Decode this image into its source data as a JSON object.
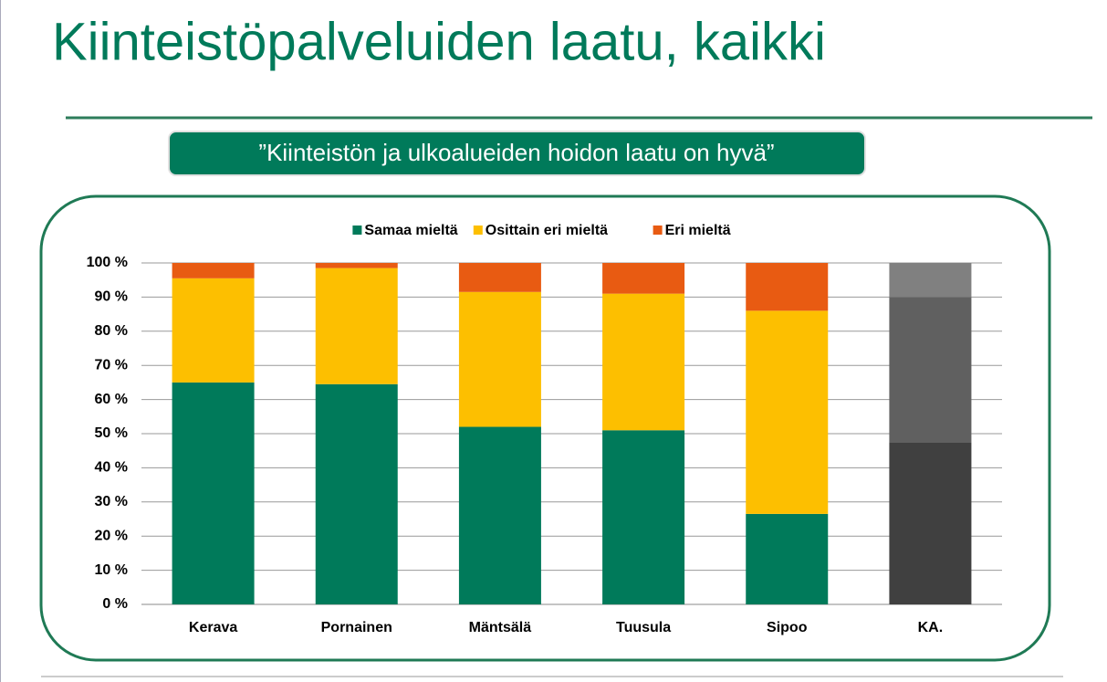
{
  "chart_data": {
    "type": "stacked_bar",
    "title": "Kiinteistöpalveluiden laatu, kaikki",
    "subtitle": "”Kiinteistön ja ulkoalueiden hoidon laatu on hyvä”",
    "categories": [
      "Kerava",
      "Pornainen",
      "Mäntsälä",
      "Tuusula",
      "Sipoo",
      "KA."
    ],
    "series": [
      {
        "name": "Samaa mieltä",
        "color": "#007a5a",
        "colors": [
          "#007a5a",
          "#007a5a",
          "#007a5a",
          "#007a5a",
          "#007a5a",
          "#404040"
        ],
        "values": [
          65,
          64.5,
          52,
          51,
          26.5,
          47.5
        ]
      },
      {
        "name": "Osittain eri mieltä",
        "color": "#fdbf00",
        "colors": [
          "#fdbf00",
          "#fdbf00",
          "#fdbf00",
          "#fdbf00",
          "#fdbf00",
          "#606060"
        ],
        "values": [
          30.5,
          34,
          39.5,
          40,
          59.5,
          42.5
        ]
      },
      {
        "name": "Eri mieltä",
        "color": "#e85b12",
        "colors": [
          "#e85b12",
          "#e85b12",
          "#e85b12",
          "#e85b12",
          "#e85b12",
          "#808080"
        ],
        "values": [
          4.5,
          1.5,
          8.5,
          9,
          14,
          10
        ]
      }
    ],
    "ylim": [
      0,
      100
    ],
    "yticks": [
      {
        "value": 0,
        "label": "0 %"
      },
      {
        "value": 10,
        "label": "10 %"
      },
      {
        "value": 20,
        "label": "20 %"
      },
      {
        "value": 30,
        "label": "30 %"
      },
      {
        "value": 40,
        "label": "40 %"
      },
      {
        "value": 50,
        "label": "50 %"
      },
      {
        "value": 60,
        "label": "60 %"
      },
      {
        "value": 70,
        "label": "70 %"
      },
      {
        "value": 80,
        "label": "80 %"
      },
      {
        "value": 90,
        "label": "90 %"
      },
      {
        "value": 100,
        "label": "100 %"
      }
    ],
    "grid": true,
    "legend": "top"
  }
}
